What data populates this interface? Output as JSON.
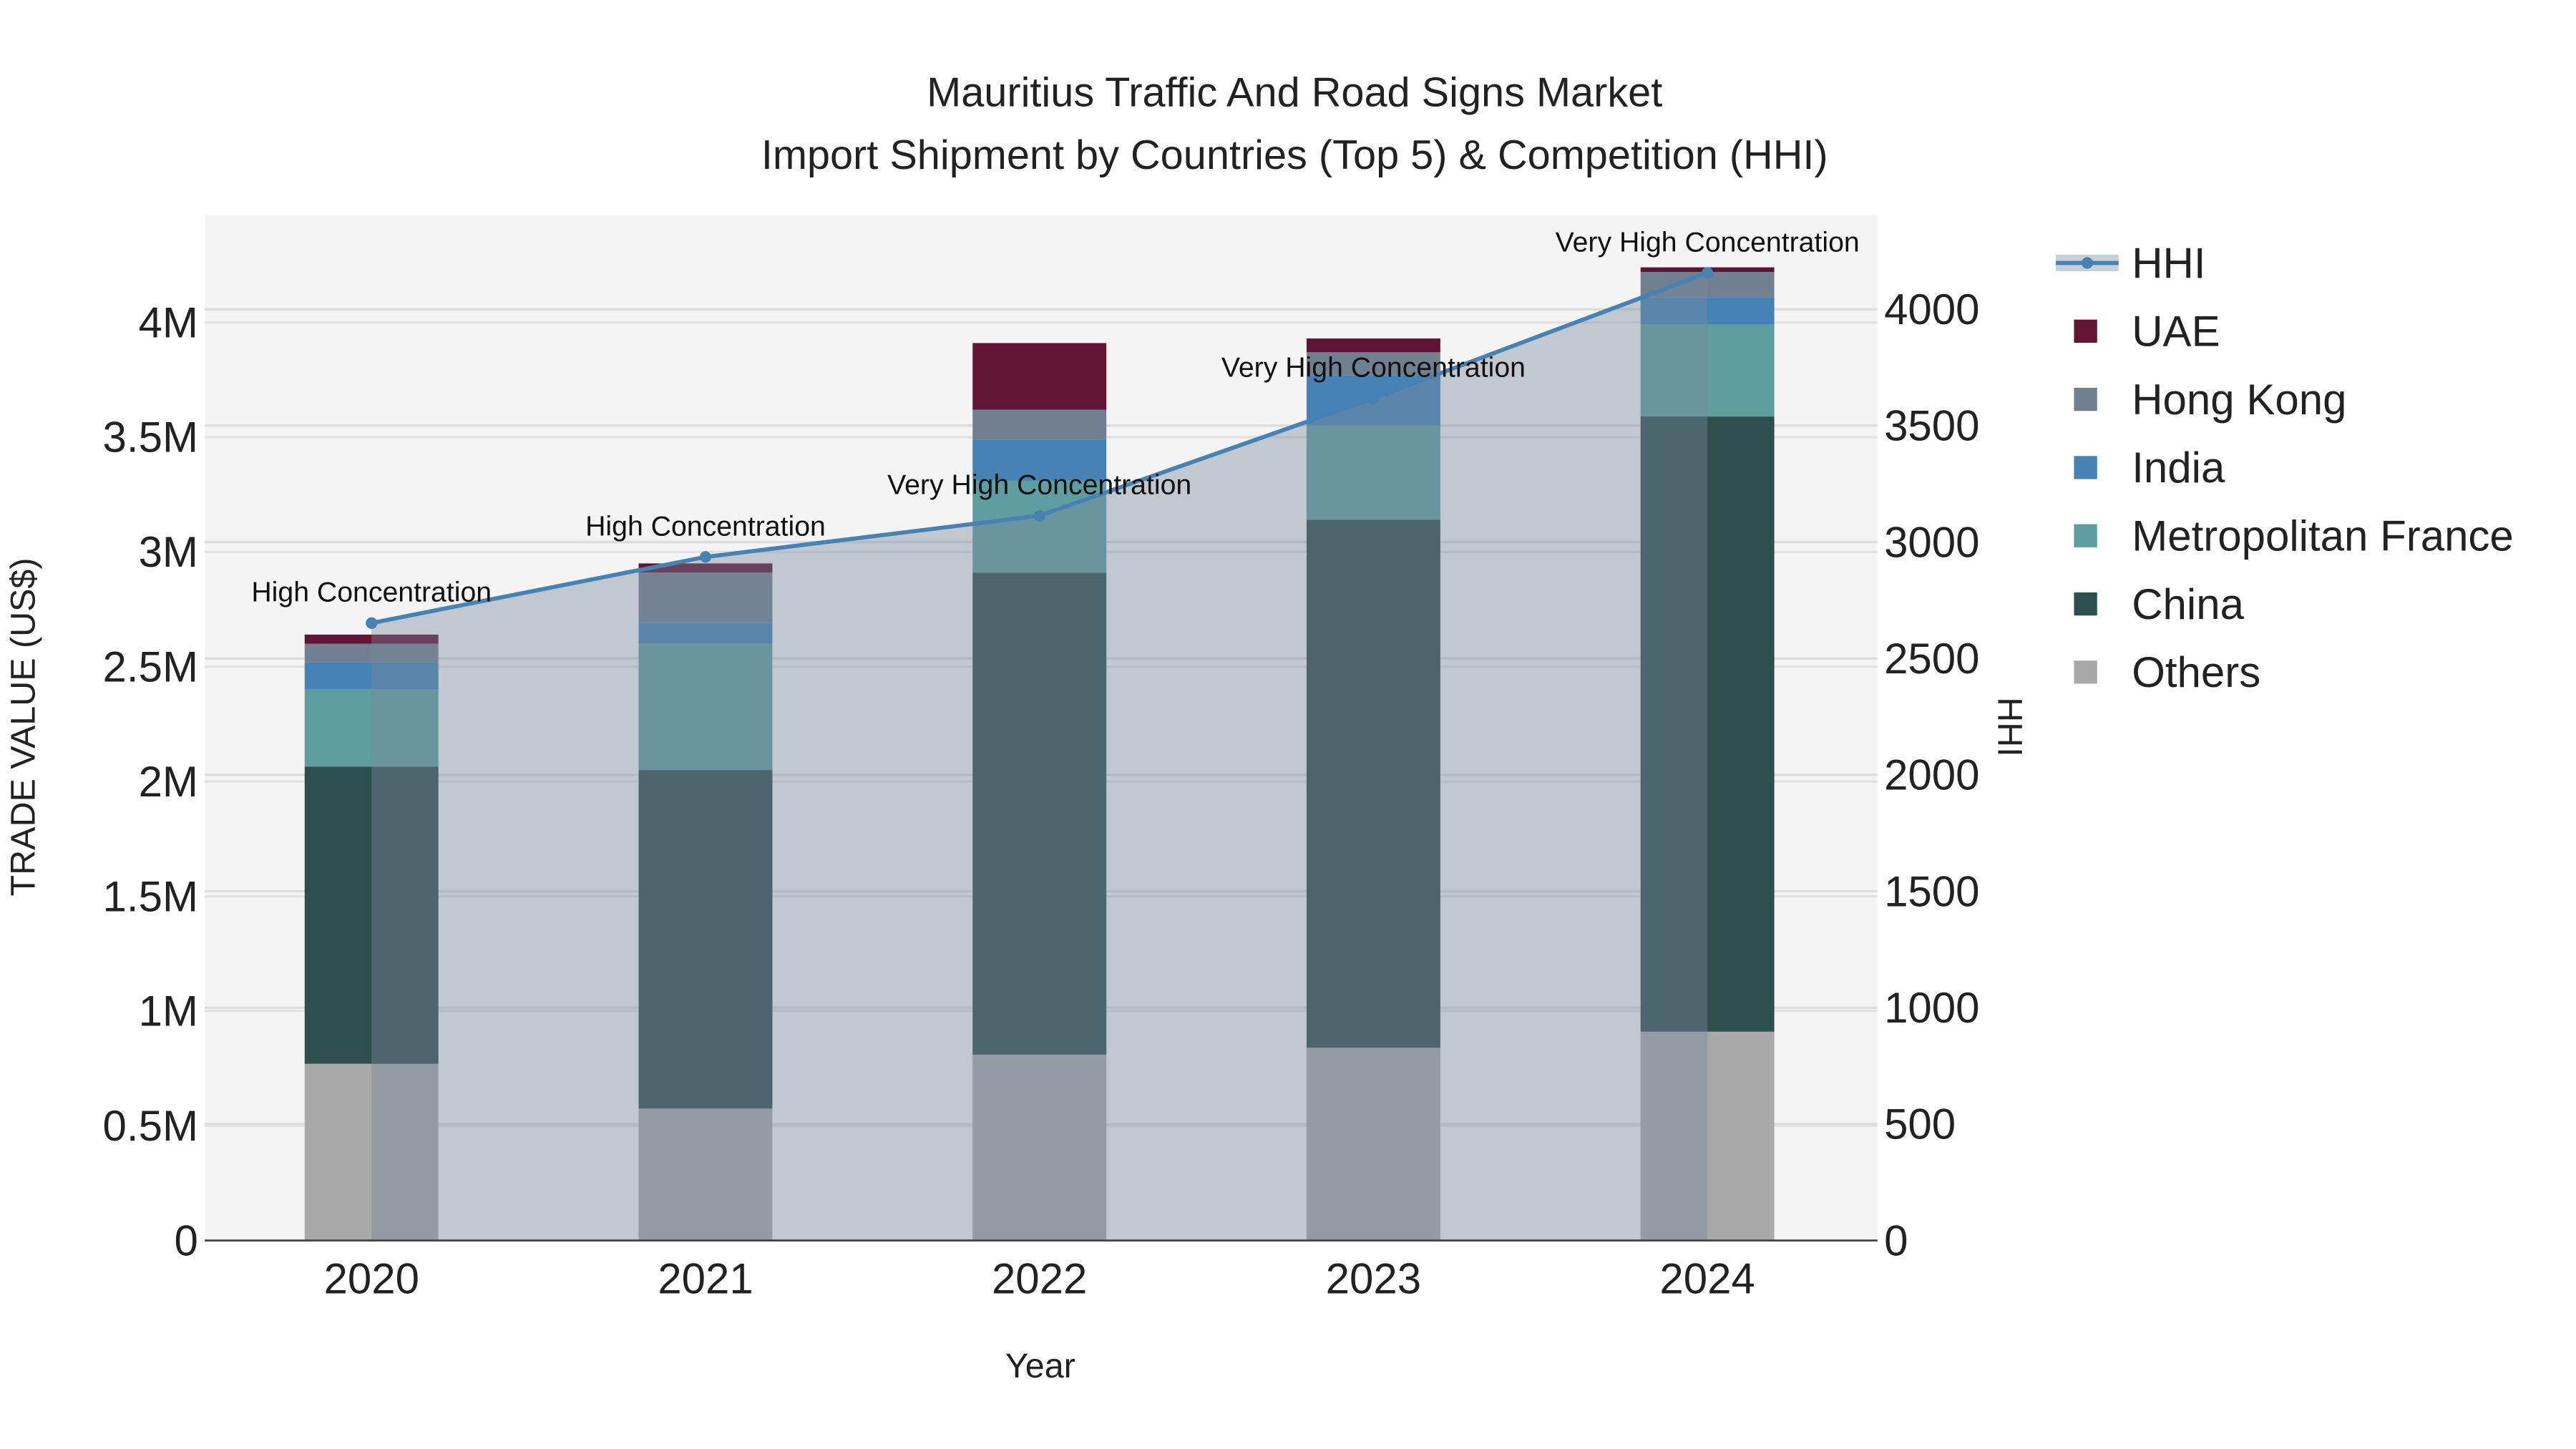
{
  "chart_data": {
    "type": "bar",
    "title": "Mauritius Traffic And Road Signs Market",
    "subtitle": "Import Shipment by Countries (Top 5) & Competition (HHI)",
    "xlabel": "Year",
    "ylabel": "TRADE VALUE (US$)",
    "y2label": "HHI",
    "categories": [
      "2020",
      "2021",
      "2022",
      "2023",
      "2024"
    ],
    "ylim": [
      0,
      4460000
    ],
    "y2lim": [
      0,
      4400
    ],
    "yticks": [
      0,
      500000,
      1000000,
      1500000,
      2000000,
      2500000,
      3000000,
      3500000,
      4000000
    ],
    "ytick_labels": [
      "0",
      "0.5M",
      "1M",
      "1.5M",
      "2M",
      "2.5M",
      "3M",
      "3.5M",
      "4M"
    ],
    "y2ticks": [
      0,
      500,
      1000,
      1500,
      2000,
      2500,
      3000,
      3500,
      4000
    ],
    "y2tick_labels": [
      "0",
      "500",
      "1000",
      "1500",
      "2000",
      "2500",
      "3000",
      "3500",
      "4000"
    ],
    "stacked": true,
    "series": [
      {
        "name": "Others",
        "color": "#a9a9a9",
        "values": [
          770000,
          575000,
          810000,
          840000,
          910000
        ]
      },
      {
        "name": "China",
        "color": "#2f4f4f",
        "values": [
          1295000,
          1475000,
          2100000,
          2300000,
          2680000
        ]
      },
      {
        "name": "Metropolitan France",
        "color": "#5f9ea0",
        "values": [
          335000,
          550000,
          400000,
          410000,
          400000
        ]
      },
      {
        "name": "India",
        "color": "#4682b4",
        "values": [
          120000,
          90000,
          180000,
          220000,
          120000
        ]
      },
      {
        "name": "Hong Kong",
        "color": "#708090",
        "values": [
          80000,
          220000,
          130000,
          100000,
          110000
        ]
      },
      {
        "name": "UAE",
        "color": "#611434",
        "values": [
          40000,
          40000,
          290000,
          60000,
          20000
        ]
      }
    ],
    "line": {
      "name": "HHI",
      "color": "#4682b4",
      "axis": "right",
      "values": [
        2652,
        2936,
        3113,
        3617,
        4156
      ],
      "annotations": [
        "High Concentration",
        "High Concentration",
        "Very High Concentration",
        "Very High Concentration",
        "Very High Concentration"
      ]
    },
    "legend_order": [
      "HHI",
      "UAE",
      "Hong Kong",
      "India",
      "Metropolitan France",
      "China",
      "Others"
    ],
    "legend_placement": "right",
    "grid": true
  }
}
